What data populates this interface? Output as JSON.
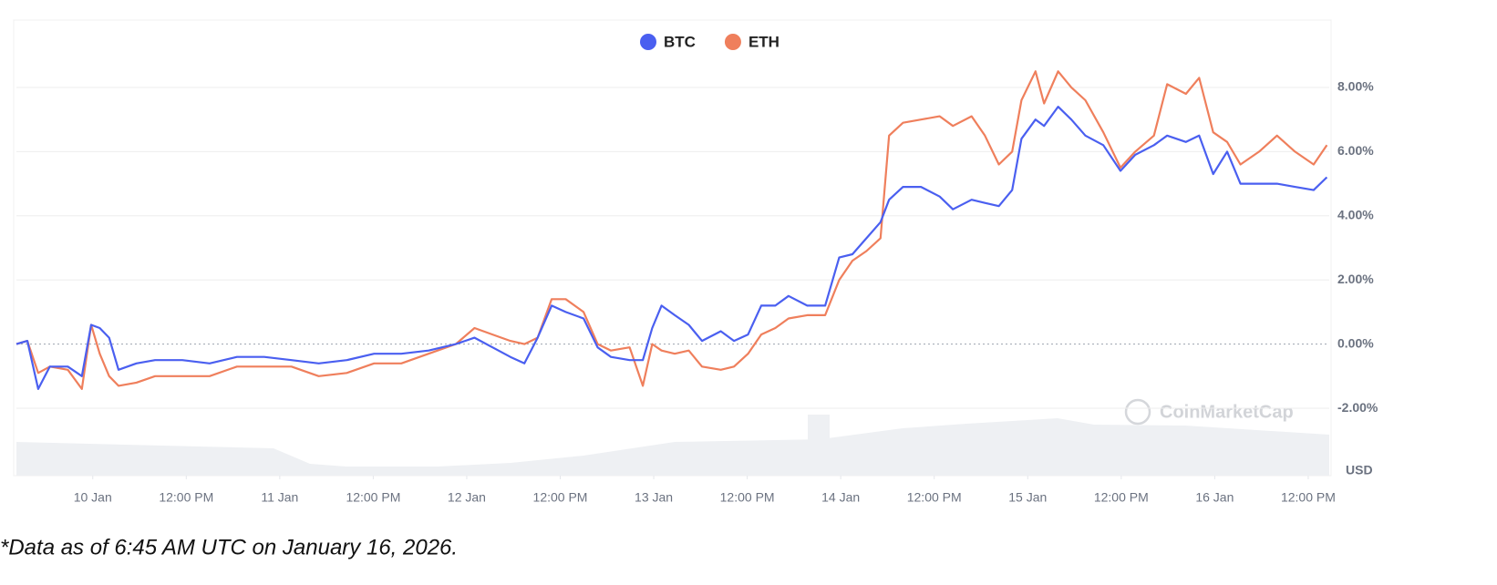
{
  "chart_data": {
    "type": "line",
    "series": [
      {
        "name": "BTC",
        "color": "#4a5ff0",
        "values": [
          0,
          0.1,
          -1.4,
          -0.7,
          -0.7,
          -1.0,
          0.6,
          0.5,
          0.2,
          -0.8,
          -0.6,
          -0.5,
          -0.5,
          -0.6,
          -0.4,
          -0.4,
          -0.5,
          -0.6,
          -0.5,
          -0.3,
          -0.3,
          -0.2,
          0.0,
          0.2,
          -0.1,
          -0.4,
          -0.6,
          0.2,
          1.2,
          1.0,
          0.8,
          -0.1,
          -0.4,
          -0.5,
          -0.5,
          0.5,
          1.2,
          0.9,
          0.6,
          0.1,
          0.4,
          0.1,
          0.3,
          1.2,
          1.2,
          1.5,
          1.2,
          1.2,
          2.7,
          2.8,
          3.3,
          3.8,
          4.5,
          4.9,
          4.9,
          4.6,
          4.2,
          4.5,
          4.4,
          4.3,
          4.8,
          6.4,
          7.0,
          6.8,
          7.4,
          7.0,
          6.5,
          6.2,
          5.4,
          5.9,
          6.2,
          6.5,
          6.3,
          6.5,
          5.3,
          6.0,
          5.0,
          5.0,
          5.0,
          4.9,
          4.8,
          5.2
        ]
      },
      {
        "name": "ETH",
        "color": "#ef7f5c",
        "values": [
          0,
          0.1,
          -0.9,
          -0.7,
          -0.8,
          -1.4,
          0.6,
          -0.3,
          -1.0,
          -1.3,
          -1.2,
          -1.0,
          -1.0,
          -1.0,
          -0.7,
          -0.7,
          -0.7,
          -1.0,
          -0.9,
          -0.6,
          -0.6,
          -0.3,
          0.0,
          0.5,
          0.3,
          0.1,
          0.0,
          0.2,
          1.4,
          1.4,
          1.0,
          0.0,
          -0.2,
          -0.1,
          -1.3,
          0.0,
          -0.2,
          -0.3,
          -0.2,
          -0.7,
          -0.8,
          -0.7,
          -0.3,
          0.3,
          0.5,
          0.8,
          0.9,
          0.9,
          2.0,
          2.6,
          2.9,
          3.3,
          6.5,
          6.9,
          7.0,
          7.1,
          6.8,
          7.1,
          6.5,
          5.6,
          6.0,
          7.6,
          8.5,
          7.5,
          8.5,
          8.0,
          7.6,
          6.6,
          5.5,
          6.0,
          6.5,
          8.1,
          7.8,
          8.3,
          6.6,
          6.3,
          5.6,
          6.0,
          6.5,
          6.0,
          5.6,
          6.2
        ]
      }
    ],
    "x": [
      14.2,
      15.6,
      17.0,
      18.5,
      20.8,
      22.6,
      23.8,
      24.9,
      26.1,
      27.3,
      29.6,
      32.0,
      35.5,
      39.0,
      42.5,
      46.0,
      49.5,
      53.0,
      56.6,
      60.1,
      63.6,
      67.1,
      70.6,
      73.0,
      75.3,
      77.6,
      79.4,
      81.1,
      82.9,
      84.7,
      87.0,
      88.8,
      90.5,
      92.9,
      94.6,
      95.8,
      97.0,
      98.7,
      100.5,
      102.2,
      104.6,
      106.3,
      108.1,
      109.8,
      111.6,
      113.3,
      115.7,
      118.0,
      119.8,
      121.5,
      123.3,
      125.1,
      126.2,
      128.0,
      130.3,
      132.7,
      134.4,
      136.8,
      138.5,
      140.3,
      142.0,
      143.2,
      145.0,
      146.1,
      147.9,
      149.6,
      151.4,
      153.7,
      155.9,
      157.8,
      160.2,
      161.9,
      164.3,
      166.0,
      167.8,
      169.6,
      171.3,
      173.7,
      176.0,
      178.3,
      180.7,
      182.4
    ],
    "xlim": [
      14.2,
      182.7
    ],
    "xticks": [
      {
        "value": 24,
        "label": "10 Jan"
      },
      {
        "value": 36,
        "label": "12:00 PM"
      },
      {
        "value": 48,
        "label": "11 Jan"
      },
      {
        "value": 60,
        "label": "12:00 PM"
      },
      {
        "value": 72,
        "label": "12 Jan"
      },
      {
        "value": 84,
        "label": "12:00 PM"
      },
      {
        "value": 96,
        "label": "13 Jan"
      },
      {
        "value": 108,
        "label": "12:00 PM"
      },
      {
        "value": 120,
        "label": "14 Jan"
      },
      {
        "value": 132,
        "label": "12:00 PM"
      },
      {
        "value": 144,
        "label": "15 Jan"
      },
      {
        "value": 156,
        "label": "12:00 PM"
      },
      {
        "value": 168,
        "label": "16 Jan"
      },
      {
        "value": 180,
        "label": "12:00 PM"
      }
    ],
    "ylim": [
      -4.1,
      10.1
    ],
    "yticks": [
      {
        "value": -2,
        "label": "-2.00%"
      },
      {
        "value": 0,
        "label": "0.00%"
      },
      {
        "value": 2,
        "label": "2.00%"
      },
      {
        "value": 4,
        "label": "4.00%"
      },
      {
        "value": 6,
        "label": "6.00%"
      },
      {
        "value": 8,
        "label": "8.00%"
      }
    ],
    "grid": true,
    "legend": "top",
    "axis_unit": "USD",
    "watermark": "CoinMarketCap",
    "footnote": "*Data as of 6:45 AM UTC on January 16, 2026."
  }
}
